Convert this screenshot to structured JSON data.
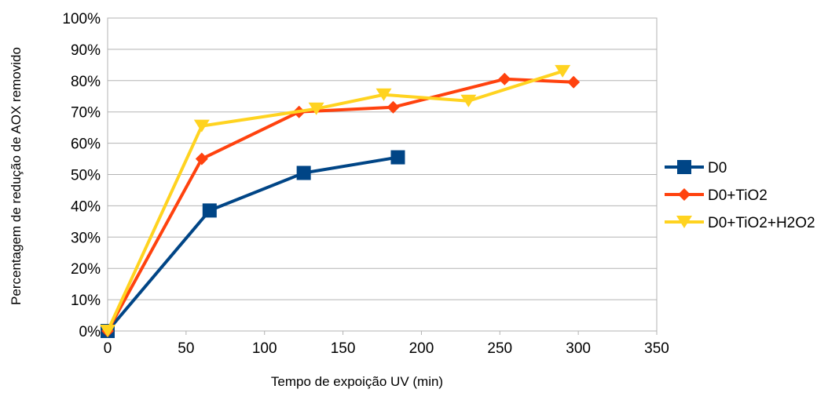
{
  "chart_data": {
    "type": "line",
    "title": "",
    "xlabel": "Tempo de expoição UV (min)",
    "ylabel": "Percentagem de redução de AOX removido",
    "xlim": [
      0,
      350
    ],
    "ylim": [
      0,
      1
    ],
    "x_ticks": [
      0,
      50,
      100,
      150,
      200,
      250,
      300,
      350
    ],
    "x_tick_labels": [
      "0",
      "50",
      "100",
      "150",
      "200",
      "250",
      "300",
      "350"
    ],
    "y_ticks": [
      0,
      0.1,
      0.2,
      0.3,
      0.4,
      0.5,
      0.6,
      0.7,
      0.8,
      0.9,
      1.0
    ],
    "y_tick_labels": [
      "0%",
      "10%",
      "20%",
      "30%",
      "40%",
      "50%",
      "60%",
      "70%",
      "80%",
      "90%",
      "100%"
    ],
    "grid": "horizontal",
    "legend_position": "right",
    "series": [
      {
        "name": "D0",
        "color": "#004586",
        "marker": "square",
        "points": [
          {
            "x": 0,
            "y": 0.0
          },
          {
            "x": 65,
            "y": 0.385
          },
          {
            "x": 125,
            "y": 0.505
          },
          {
            "x": 185,
            "y": 0.555
          }
        ]
      },
      {
        "name": "D0+TiO2",
        "color": "#ff420e",
        "marker": "diamond",
        "points": [
          {
            "x": 0,
            "y": 0.0
          },
          {
            "x": 60,
            "y": 0.55
          },
          {
            "x": 122,
            "y": 0.7
          },
          {
            "x": 182,
            "y": 0.715
          },
          {
            "x": 253,
            "y": 0.805
          },
          {
            "x": 297,
            "y": 0.795
          }
        ]
      },
      {
        "name": "D0+TiO2+H2O2",
        "color": "#ffd320",
        "marker": "triangle-down",
        "points": [
          {
            "x": 0,
            "y": 0.0
          },
          {
            "x": 60,
            "y": 0.655
          },
          {
            "x": 133,
            "y": 0.71
          },
          {
            "x": 176,
            "y": 0.755
          },
          {
            "x": 230,
            "y": 0.735
          },
          {
            "x": 290,
            "y": 0.83
          }
        ]
      }
    ]
  }
}
